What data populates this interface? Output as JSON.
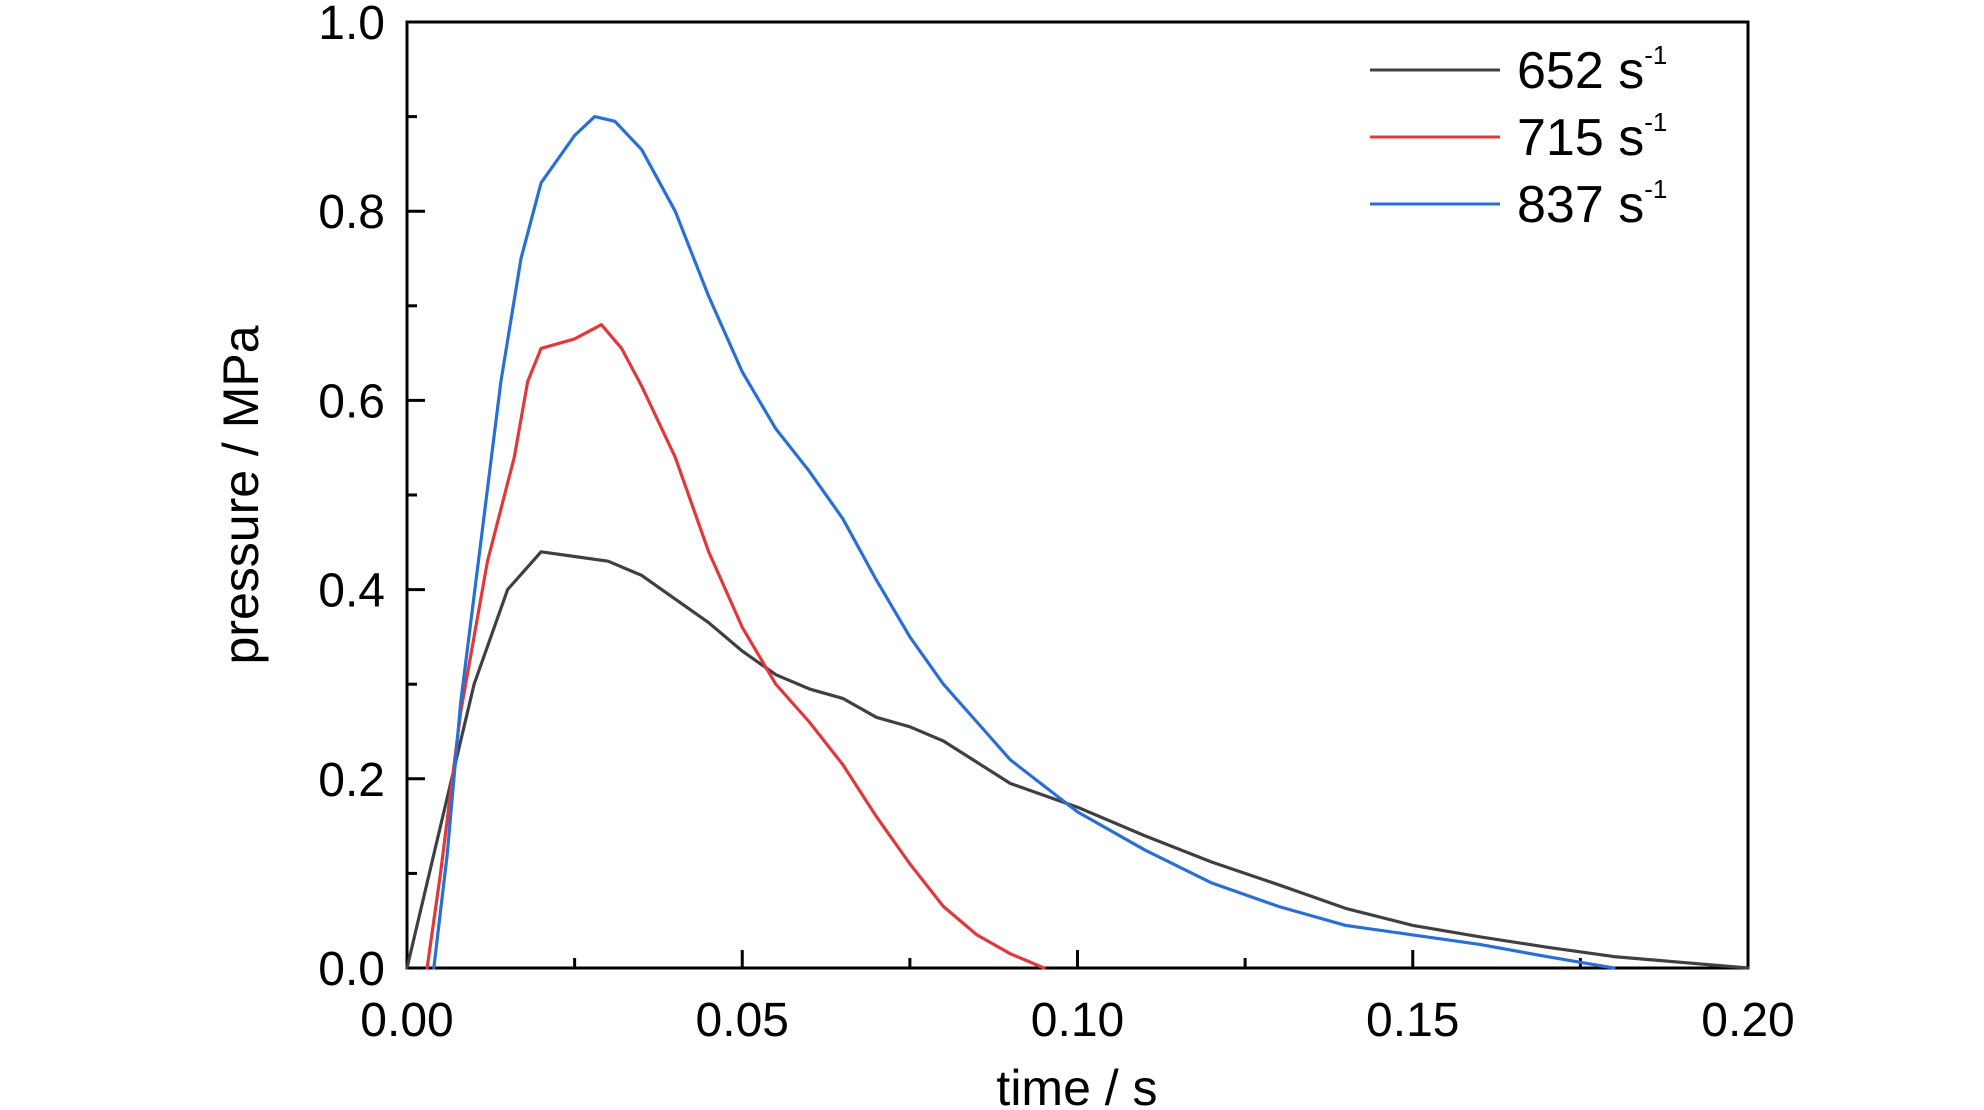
{
  "chart_data": {
    "type": "line",
    "title": "",
    "xlabel": "time / s",
    "ylabel": "pressure / MPa",
    "xlim": [
      0.0,
      0.2
    ],
    "ylim": [
      0.0,
      1.0
    ],
    "x_ticks": [
      "0.00",
      "0.05",
      "0.10",
      "0.15",
      "0.20"
    ],
    "x_tick_values": [
      0.0,
      0.05,
      0.1,
      0.15,
      0.2
    ],
    "y_ticks": [
      "0.0",
      "0.2",
      "0.4",
      "0.6",
      "0.8",
      "1.0"
    ],
    "y_tick_values": [
      0.0,
      0.2,
      0.4,
      0.6,
      0.8,
      1.0
    ],
    "grid": false,
    "legend_position": "top-right",
    "series": [
      {
        "name": "652 s-1",
        "label_main": "652 s",
        "label_sup": "-1",
        "color": "#404040",
        "points": [
          [
            0.0,
            0.0
          ],
          [
            0.002,
            0.06
          ],
          [
            0.005,
            0.15
          ],
          [
            0.01,
            0.3
          ],
          [
            0.015,
            0.4
          ],
          [
            0.02,
            0.44
          ],
          [
            0.025,
            0.435
          ],
          [
            0.03,
            0.43
          ],
          [
            0.035,
            0.415
          ],
          [
            0.04,
            0.39
          ],
          [
            0.045,
            0.365
          ],
          [
            0.05,
            0.335
          ],
          [
            0.055,
            0.31
          ],
          [
            0.06,
            0.295
          ],
          [
            0.065,
            0.285
          ],
          [
            0.07,
            0.265
          ],
          [
            0.075,
            0.255
          ],
          [
            0.08,
            0.24
          ],
          [
            0.09,
            0.195
          ],
          [
            0.1,
            0.17
          ],
          [
            0.11,
            0.14
          ],
          [
            0.12,
            0.112
          ],
          [
            0.13,
            0.088
          ],
          [
            0.14,
            0.063
          ],
          [
            0.15,
            0.045
          ],
          [
            0.16,
            0.033
          ],
          [
            0.17,
            0.022
          ],
          [
            0.18,
            0.012
          ],
          [
            0.19,
            0.006
          ],
          [
            0.2,
            0.0
          ]
        ]
      },
      {
        "name": "715 s-1",
        "label_main": "715 s",
        "label_sup": "-1",
        "color": "#e0393b",
        "points": [
          [
            0.003,
            0.0
          ],
          [
            0.005,
            0.1
          ],
          [
            0.008,
            0.27
          ],
          [
            0.012,
            0.43
          ],
          [
            0.016,
            0.54
          ],
          [
            0.018,
            0.62
          ],
          [
            0.02,
            0.655
          ],
          [
            0.025,
            0.665
          ],
          [
            0.029,
            0.68
          ],
          [
            0.032,
            0.655
          ],
          [
            0.035,
            0.615
          ],
          [
            0.04,
            0.54
          ],
          [
            0.045,
            0.44
          ],
          [
            0.05,
            0.36
          ],
          [
            0.055,
            0.3
          ],
          [
            0.06,
            0.26
          ],
          [
            0.065,
            0.215
          ],
          [
            0.07,
            0.16
          ],
          [
            0.075,
            0.11
          ],
          [
            0.08,
            0.065
          ],
          [
            0.085,
            0.035
          ],
          [
            0.09,
            0.015
          ],
          [
            0.095,
            0.0
          ]
        ]
      },
      {
        "name": "837 s-1",
        "label_main": "837 s",
        "label_sup": "-1",
        "color": "#2a6fd3",
        "points": [
          [
            0.004,
            0.0
          ],
          [
            0.006,
            0.12
          ],
          [
            0.008,
            0.28
          ],
          [
            0.011,
            0.45
          ],
          [
            0.014,
            0.62
          ],
          [
            0.017,
            0.75
          ],
          [
            0.02,
            0.83
          ],
          [
            0.025,
            0.88
          ],
          [
            0.028,
            0.9
          ],
          [
            0.031,
            0.895
          ],
          [
            0.035,
            0.865
          ],
          [
            0.04,
            0.8
          ],
          [
            0.045,
            0.71
          ],
          [
            0.05,
            0.63
          ],
          [
            0.055,
            0.57
          ],
          [
            0.06,
            0.525
          ],
          [
            0.065,
            0.475
          ],
          [
            0.07,
            0.41
          ],
          [
            0.075,
            0.35
          ],
          [
            0.08,
            0.3
          ],
          [
            0.085,
            0.26
          ],
          [
            0.09,
            0.22
          ],
          [
            0.1,
            0.165
          ],
          [
            0.11,
            0.125
          ],
          [
            0.12,
            0.09
          ],
          [
            0.13,
            0.065
          ],
          [
            0.14,
            0.045
          ],
          [
            0.15,
            0.035
          ],
          [
            0.16,
            0.025
          ],
          [
            0.17,
            0.012
          ],
          [
            0.175,
            0.006
          ],
          [
            0.18,
            0.0
          ]
        ]
      }
    ]
  }
}
